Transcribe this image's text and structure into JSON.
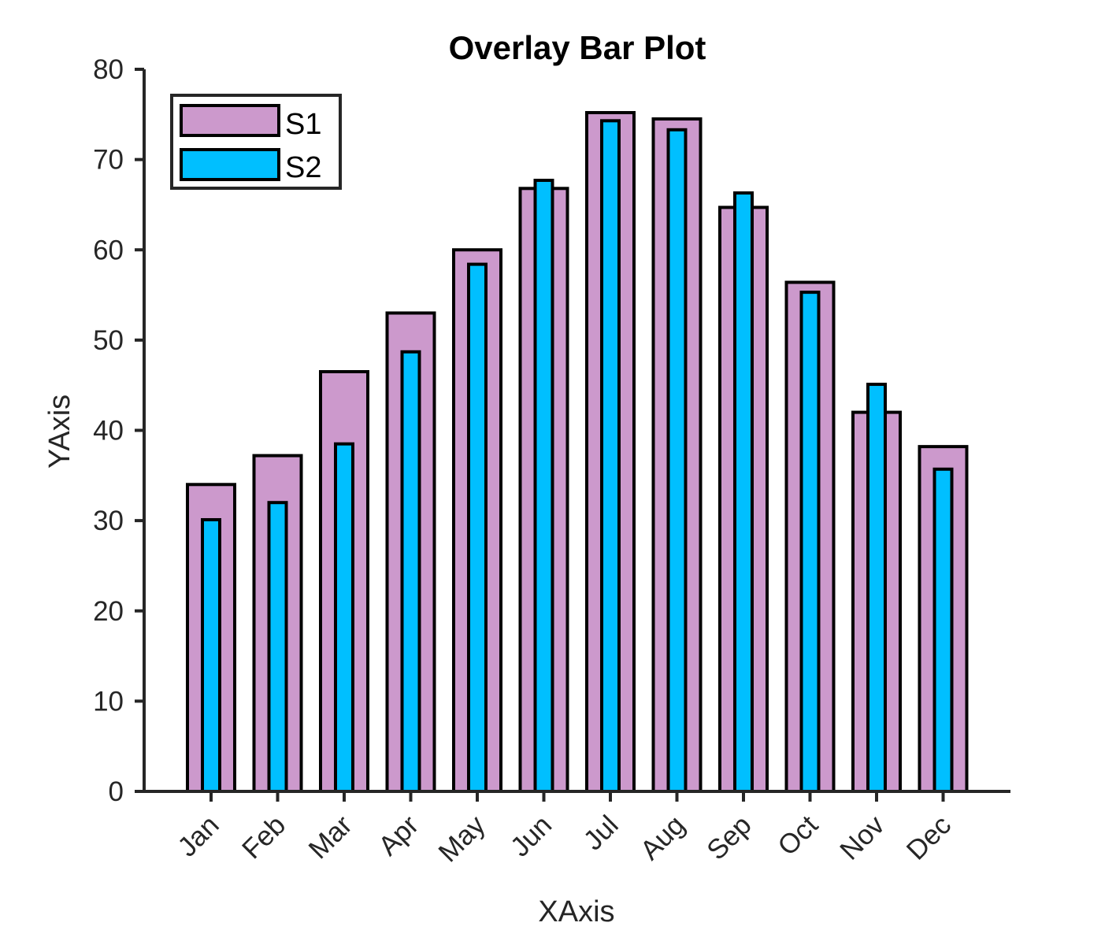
{
  "chart_data": {
    "type": "bar",
    "title": "Overlay Bar Plot",
    "xlabel": "XAxis",
    "ylabel": "YAxis",
    "categories": [
      "Jan",
      "Feb",
      "Mar",
      "Apr",
      "May",
      "Jun",
      "Jul",
      "Aug",
      "Sep",
      "Oct",
      "Nov",
      "Dec"
    ],
    "series": [
      {
        "name": "S1",
        "color": "#CC99CC",
        "values": [
          34,
          37.2,
          46.5,
          53,
          60,
          66.8,
          75.2,
          74.5,
          64.7,
          56.4,
          42,
          38.2
        ]
      },
      {
        "name": "S2",
        "color": "#00BFFF",
        "values": [
          30.1,
          32,
          38.5,
          48.7,
          58.4,
          67.7,
          74.3,
          73.3,
          66.3,
          55.3,
          45.1,
          35.7
        ]
      }
    ],
    "ylim": [
      0,
      80
    ],
    "yticks": [
      0,
      10,
      20,
      30,
      40,
      50,
      60,
      70,
      80
    ],
    "grid": false,
    "legend_position": "top-left",
    "overlay": true
  }
}
